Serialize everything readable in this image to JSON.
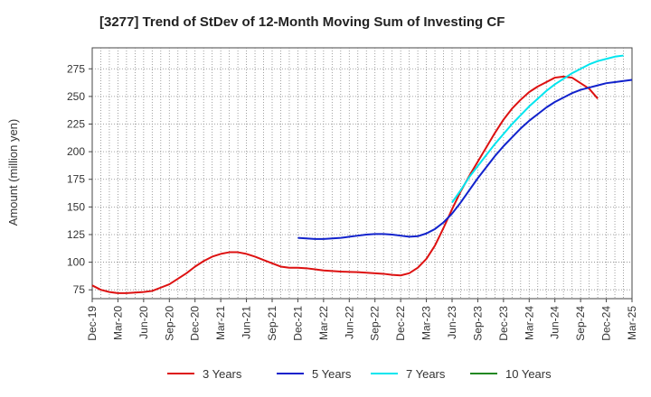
{
  "chart_data": {
    "type": "line",
    "title": "[3277]  Trend of StDev of 12-Month Moving Sum of Investing CF",
    "xlabel": "",
    "ylabel": "Amount (million yen)",
    "ylim": [
      67,
      294
    ],
    "yticks": [
      75,
      100,
      125,
      150,
      175,
      200,
      225,
      250,
      275
    ],
    "x_ticks": [
      "Dec-19",
      "Mar-20",
      "Jun-20",
      "Sep-20",
      "Dec-20",
      "Mar-21",
      "Jun-21",
      "Sep-21",
      "Dec-21",
      "Mar-22",
      "Jun-22",
      "Sep-22",
      "Dec-22",
      "Mar-23",
      "Jun-23",
      "Sep-23",
      "Dec-23",
      "Mar-24",
      "Jun-24",
      "Sep-24",
      "Dec-24",
      "Mar-25"
    ],
    "x_months": [
      "2019-12",
      "2020-01",
      "2020-02",
      "2020-03",
      "2020-04",
      "2020-05",
      "2020-06",
      "2020-07",
      "2020-08",
      "2020-09",
      "2020-10",
      "2020-11",
      "2020-12",
      "2021-01",
      "2021-02",
      "2021-03",
      "2021-04",
      "2021-05",
      "2021-06",
      "2021-07",
      "2021-08",
      "2021-09",
      "2021-10",
      "2021-11",
      "2021-12",
      "2022-01",
      "2022-02",
      "2022-03",
      "2022-04",
      "2022-05",
      "2022-06",
      "2022-07",
      "2022-08",
      "2022-09",
      "2022-10",
      "2022-11",
      "2022-12",
      "2023-01",
      "2023-02",
      "2023-03",
      "2023-04",
      "2023-05",
      "2023-06",
      "2023-07",
      "2023-08",
      "2023-09",
      "2023-10",
      "2023-11",
      "2023-12",
      "2024-01",
      "2024-02",
      "2024-03",
      "2024-04",
      "2024-05",
      "2024-06",
      "2024-07",
      "2024-08",
      "2024-09",
      "2024-10",
      "2024-11",
      "2024-12"
    ],
    "grid": true,
    "legend_position": "bottom",
    "series": [
      {
        "name": "3 Years",
        "color": "#dd1111",
        "start_month": "2019-12",
        "values": [
          79,
          75,
          73,
          72,
          72,
          72.5,
          73,
          74,
          77,
          80,
          85,
          90,
          96,
          101,
          105,
          107.5,
          109,
          109,
          107.5,
          105,
          102,
          99,
          96,
          95,
          95,
          94.5,
          93.5,
          92.5,
          92,
          91.5,
          91.2,
          91,
          90.5,
          90,
          89.5,
          88.5,
          88,
          90,
          95,
          103,
          115,
          131,
          148,
          164,
          178,
          191,
          204,
          217,
          229,
          239,
          247,
          254,
          259,
          263,
          267,
          268,
          267,
          262,
          257,
          248
        ]
      },
      {
        "name": "5 Years",
        "color": "#1122cc",
        "start_month": "2021-12",
        "values": [
          122,
          121.5,
          121,
          121,
          121.5,
          122,
          123,
          124,
          125,
          125.5,
          125.5,
          125,
          124,
          123,
          123.5,
          126,
          130,
          136,
          144,
          154,
          165,
          176,
          186,
          196,
          205,
          213,
          221,
          228,
          234,
          240,
          245,
          249,
          253,
          256,
          258,
          260,
          262,
          263,
          264,
          265
        ]
      },
      {
        "name": "7 Years",
        "color": "#00e5ee",
        "start_month": "2023-06",
        "values": [
          154,
          165,
          177,
          187,
          197,
          207,
          216,
          225,
          233,
          241,
          248,
          255,
          261,
          266,
          271,
          275,
          279,
          282,
          284,
          286,
          287
        ]
      },
      {
        "name": "10 Years",
        "color": "#228822",
        "start_month": "2024-12",
        "values": []
      }
    ]
  }
}
